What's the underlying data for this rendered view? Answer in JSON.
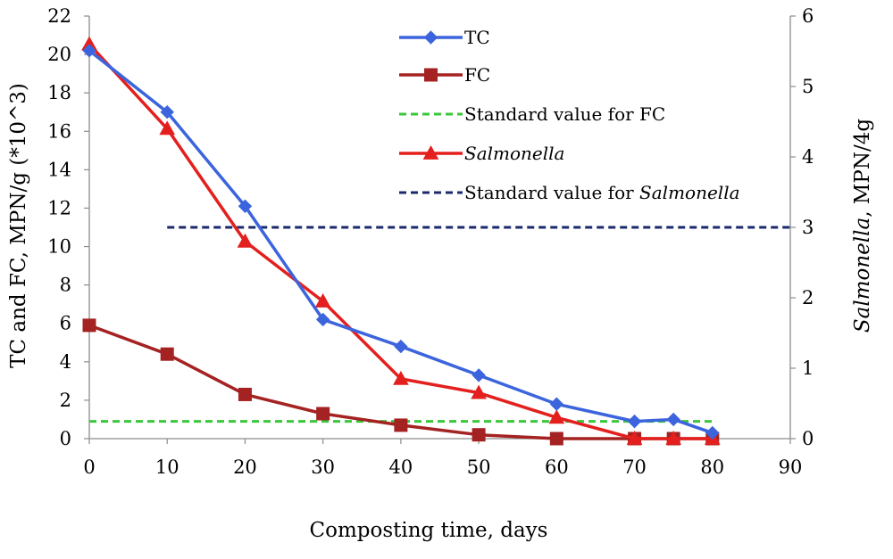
{
  "chart_data": {
    "type": "line",
    "xlabel": "Composting time, days",
    "ylabel_left": "TC and FC, MPN/g (*10^3)",
    "ylabel_right_italic": "Salmonella",
    "ylabel_right_rest": ", MPN/4g",
    "xlim": [
      0,
      90
    ],
    "ylim_left": [
      0,
      22
    ],
    "ylim_right": [
      0,
      6
    ],
    "x_ticks": [
      "0",
      "10",
      "20",
      "30",
      "40",
      "50",
      "60",
      "70",
      "80",
      "90"
    ],
    "y_left_ticks": [
      "0",
      "2",
      "4",
      "6",
      "8",
      "10",
      "12",
      "14",
      "16",
      "18",
      "20",
      "22"
    ],
    "y_right_ticks": [
      "0",
      "1",
      "2",
      "3",
      "4",
      "5",
      "6"
    ],
    "grid": false,
    "legend_position": "top-center",
    "series": [
      {
        "id": "tc",
        "name": "TC",
        "axis": "left",
        "color": "#3c64dc",
        "marker": "diamond",
        "dashed": false,
        "x": [
          0,
          10,
          20,
          30,
          40,
          50,
          60,
          70,
          75,
          80
        ],
        "y": [
          20.2,
          17.0,
          12.1,
          6.2,
          4.8,
          3.3,
          1.8,
          0.9,
          1.0,
          0.3
        ]
      },
      {
        "id": "fc",
        "name": "FC",
        "axis": "left",
        "color": "#a52222",
        "marker": "square",
        "dashed": false,
        "x": [
          0,
          10,
          20,
          30,
          40,
          50,
          60,
          70,
          75,
          80
        ],
        "y": [
          5.9,
          4.4,
          2.3,
          1.3,
          0.7,
          0.2,
          0.0,
          0.0,
          0.0,
          0.0
        ]
      },
      {
        "id": "fc_std",
        "name": "Standard value for FC",
        "axis": "left",
        "color": "#3ac73a",
        "marker": "none",
        "dashed": true,
        "x": [
          0,
          80
        ],
        "y": [
          0.9,
          0.9
        ]
      },
      {
        "id": "salmonella",
        "name": "Salmonella",
        "name_italic": true,
        "axis": "right",
        "color": "#e3201e",
        "marker": "triangle",
        "dashed": false,
        "x": [
          0,
          10,
          20,
          30,
          40,
          50,
          60,
          70,
          75,
          80
        ],
        "y": [
          5.6,
          4.4,
          2.8,
          1.95,
          0.85,
          0.65,
          0.3,
          0.0,
          0.0,
          0.0
        ]
      },
      {
        "id": "salm_std",
        "name_prefix": "Standard value for ",
        "name_italic_part": "Salmonella",
        "axis": "right",
        "color": "#1a2a6c",
        "marker": "none",
        "dashed": true,
        "x": [
          10,
          90
        ],
        "y": [
          3,
          3
        ]
      }
    ]
  }
}
